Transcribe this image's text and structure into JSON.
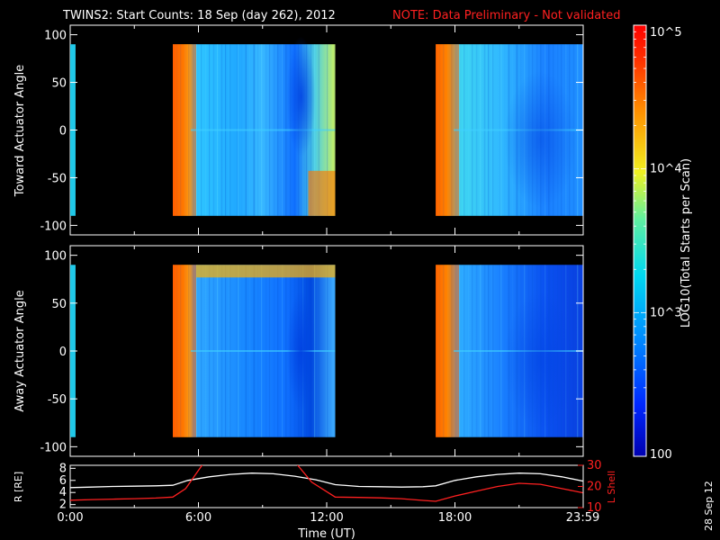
{
  "title": "TWINS2: Start Counts: 18 Sep (day 262), 2012",
  "note": "NOTE: Data Preliminary - Not validated",
  "stamp": "28 Sep 12",
  "colorbar": {
    "label": "LOG10(Total Starts per Scan)",
    "tick_labels": [
      "10^5",
      "10^4",
      "10^3",
      "100"
    ],
    "tick_values": [
      100000,
      10000,
      1000,
      100
    ],
    "range": [
      100,
      100000
    ]
  },
  "colors": {
    "background": "#000000",
    "axis": "#ffffff",
    "lshell": "#ff2020",
    "note": "#ff2020"
  },
  "chart_data": [
    {
      "type": "heatmap",
      "panel": "top",
      "ylabel": "Toward Actuator Angle",
      "ylim": [
        -110,
        110
      ],
      "yticks": [
        100,
        50,
        0,
        -50,
        -100
      ],
      "xlim": [
        0,
        24
      ],
      "x_unit": "hours UT",
      "data_y_range": [
        -90,
        90
      ],
      "data_segments_hours": [
        [
          0,
          0.25
        ],
        [
          4.8,
          12.4
        ],
        [
          17.1,
          23.98
        ]
      ]
    },
    {
      "type": "heatmap",
      "panel": "bottom",
      "ylabel": "Away Actuator Angle",
      "ylim": [
        -110,
        110
      ],
      "yticks": [
        100,
        50,
        0,
        -50,
        -100
      ],
      "xlim": [
        0,
        24
      ],
      "x_unit": "hours UT",
      "data_y_range": [
        -90,
        90
      ],
      "data_segments_hours": [
        [
          0,
          0.25
        ],
        [
          4.8,
          12.4
        ],
        [
          17.1,
          23.98
        ]
      ]
    },
    {
      "type": "line",
      "panel": "orbit",
      "xlabel": "Time (UT)",
      "xtick_labels": [
        "0:00",
        "6:00",
        "12:00",
        "18:00",
        "23:59"
      ],
      "xtick_hours": [
        0,
        6,
        12,
        18,
        23.98
      ],
      "xlim": [
        0,
        24
      ],
      "ylabel_left": "R [RE]",
      "yticks_left": [
        2,
        4,
        6,
        8
      ],
      "ylim_left": [
        1.5,
        8.5
      ],
      "ylabel_right": "L Shell",
      "yticks_right": [
        10,
        20,
        30
      ],
      "ylim_right": [
        10,
        30
      ],
      "series": [
        {
          "name": "R [RE]",
          "color": "#ffffff",
          "axis": "left",
          "x": [
            0,
            1,
            2,
            3,
            4,
            4.8,
            5.5,
            6.5,
            7.5,
            8.5,
            9.5,
            10.5,
            11.5,
            12.4,
            13.5,
            14.5,
            15.5,
            16.5,
            17.1,
            18,
            19,
            20,
            21,
            22,
            23,
            23.98
          ],
          "y": [
            4.8,
            4.9,
            5.0,
            5.05,
            5.1,
            5.2,
            6.0,
            6.6,
            7.0,
            7.2,
            7.1,
            6.7,
            6.1,
            5.3,
            5.0,
            4.95,
            4.9,
            4.95,
            5.1,
            6.0,
            6.6,
            7.0,
            7.2,
            7.1,
            6.6,
            5.9
          ]
        },
        {
          "name": "L Shell",
          "color": "#ff2020",
          "axis": "right",
          "x": [
            0,
            1,
            2,
            3,
            4,
            4.8,
            5.4,
            6.2,
            10.6,
            11.3,
            12.4,
            13.5,
            14.5,
            15.5,
            16.5,
            17.1,
            18,
            19,
            20,
            21,
            22,
            23,
            23.98
          ],
          "y": [
            13.5,
            13.8,
            14.0,
            14.2,
            14.5,
            15.0,
            19.0,
            30.5,
            30.5,
            22.0,
            15.0,
            14.8,
            14.6,
            14.2,
            13.4,
            13.0,
            15.5,
            17.8,
            20.0,
            21.5,
            21.0,
            19.0,
            17.0
          ]
        }
      ]
    }
  ]
}
